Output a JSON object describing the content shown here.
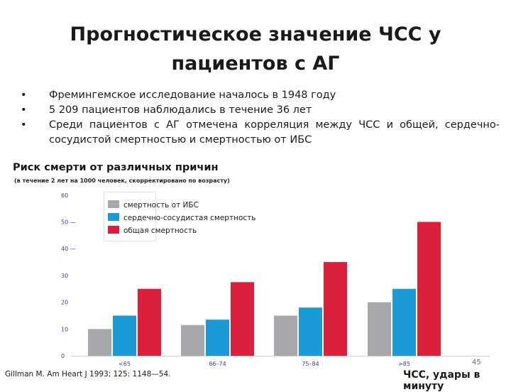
{
  "slide": {
    "title_line1": "Прогностическое значение ЧСС у",
    "title_line2": "пациентов с АГ",
    "bullets": [
      "Фремингемское исследование началось в 1948 году",
      "5 209 пациентов наблюдались в течение 36 лет",
      "Среди пациентов с АГ отмечена корреляция между ЧСС и общей, сердечно-сосудистой смертностью и смертностью от ИБС"
    ],
    "source": "Gillman M. Am Heart J 1993; 125: 1148—54.",
    "page_number": "45"
  },
  "chart_data": {
    "type": "bar",
    "title": "Риск смерти от различных причин",
    "subtitle": "(в течение 2 лет на 1000 человек, скорректировано по возрасту)",
    "xlabel": "ЧСС, удары в минуту",
    "ylabel": "",
    "categories": [
      "<65",
      "66–74",
      "75–84",
      ">85"
    ],
    "series": [
      {
        "name": "смертность от ИБС",
        "color": "#a6a8ab",
        "values": [
          10,
          11.5,
          15,
          20
        ]
      },
      {
        "name": "сердечно-сосудистая смертность",
        "color": "#1a9ad6",
        "values": [
          15,
          13.5,
          18,
          25
        ]
      },
      {
        "name": "общая смертность",
        "color": "#dc1f3a",
        "values": [
          25,
          27.5,
          35,
          50
        ]
      }
    ],
    "yticks": [
      "0",
      "10",
      "20",
      "30",
      "40 —",
      "50 —",
      "60"
    ],
    "ylim": [
      0,
      60
    ],
    "grid": false,
    "legend_position": "top-left"
  }
}
